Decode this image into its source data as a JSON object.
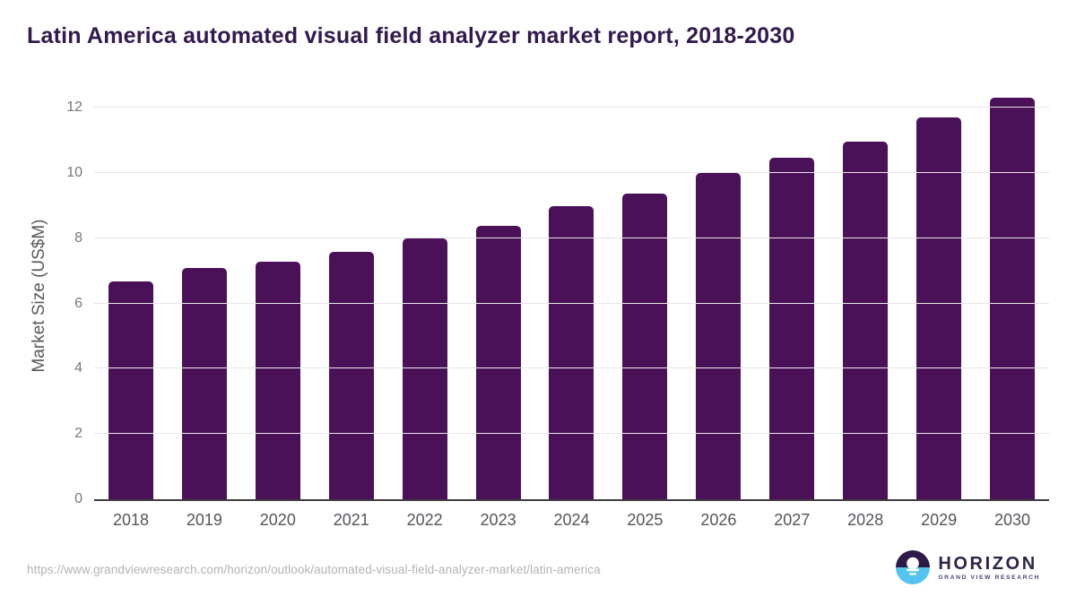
{
  "header": {
    "title": "Latin America automated visual field analyzer market report, 2018-2030"
  },
  "chart_data": {
    "type": "bar",
    "categories": [
      "2018",
      "2019",
      "2020",
      "2021",
      "2022",
      "2023",
      "2024",
      "2025",
      "2026",
      "2027",
      "2028",
      "2029",
      "2030"
    ],
    "values": [
      6.67,
      7.1,
      7.29,
      7.58,
      8.0,
      8.39,
      8.99,
      9.38,
      10.0,
      10.48,
      10.97,
      11.69,
      12.31
    ],
    "title": "Latin America automated visual field analyzer market report, 2018-2030",
    "xlabel": "",
    "ylabel": "Market Size (US$M)",
    "ylim": [
      0,
      12.6
    ],
    "yticks": [
      0,
      2,
      4,
      6,
      8,
      10,
      12
    ],
    "grid": true,
    "legend_position": "none",
    "bar_color": "#4a1159"
  },
  "footer": {
    "source_url": "https://www.grandviewresearch.com/horizon/outlook/automated-visual-field-analyzer-market/latin-america",
    "logo": {
      "name": "HORIZON",
      "subtitle": "GRAND VIEW RESEARCH",
      "icon": "horizon-sunrise-icon",
      "colors": {
        "top": "#2e1a47",
        "bottom": "#55c3f0",
        "accent": "#ffffff"
      }
    }
  }
}
